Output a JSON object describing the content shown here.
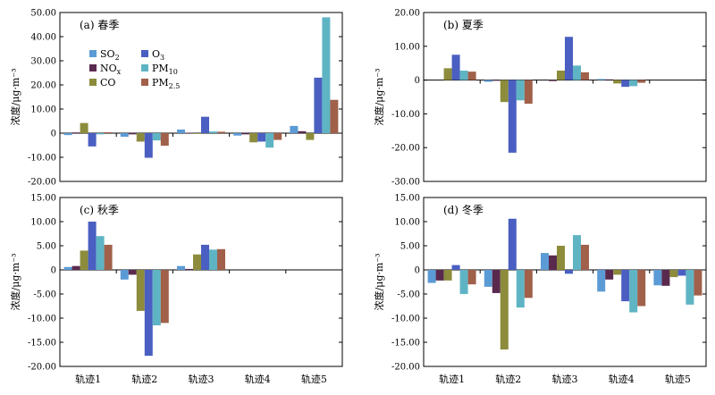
{
  "figure": {
    "ylabel": "浓度/μg·m⁻³",
    "categories": [
      "轨迹1",
      "轨迹2",
      "轨迹3",
      "轨迹4",
      "轨迹5"
    ]
  },
  "legend": {
    "entries": [
      {
        "key": "SO2",
        "base": "SO",
        "sub": "2"
      },
      {
        "key": "O3",
        "base": "O",
        "sub": "3"
      },
      {
        "key": "NOx",
        "base": "NO",
        "sub": "x"
      },
      {
        "key": "PM10",
        "base": "PM",
        "sub": "10"
      },
      {
        "key": "CO",
        "base": "CO",
        "sub": ""
      },
      {
        "key": "PM25",
        "base": "PM",
        "sub": "2.5"
      }
    ]
  },
  "colors": {
    "SO2": "#5b9bd5",
    "NOx": "#5a2a4e",
    "CO": "#8c8c3c",
    "O3": "#4a5fc1",
    "PM10": "#5fb4c4",
    "PM25": "#a0604a"
  },
  "series_order": [
    "SO2",
    "NOx",
    "CO",
    "O3",
    "PM10",
    "PM25"
  ],
  "chart_data": [
    {
      "type": "bar",
      "title": "(a) 春季",
      "ylabel": "浓度/μg·m⁻³",
      "ylim": [
        -20,
        50
      ],
      "ytick_labels": [
        "50.00",
        "40.00",
        "30.00",
        "20.00",
        "10.00",
        "0",
        "-10.00",
        "-20.00"
      ],
      "categories": [
        "轨迹1",
        "轨迹2",
        "轨迹3",
        "轨迹4",
        "轨迹5"
      ],
      "series": [
        {
          "name": "SO2",
          "values": [
            -0.8,
            -1.5,
            1.5,
            -1.0,
            3.0
          ]
        },
        {
          "name": "NOx",
          "values": [
            0.3,
            -0.5,
            0.2,
            -0.5,
            0.8
          ]
        },
        {
          "name": "CO",
          "values": [
            4.2,
            -3.5,
            -0.3,
            -3.8,
            -2.8
          ]
        },
        {
          "name": "O3",
          "values": [
            -5.5,
            -10.2,
            6.8,
            -3.5,
            23.0
          ]
        },
        {
          "name": "PM10",
          "values": [
            -0.5,
            -3.0,
            0.7,
            -6.0,
            48.0
          ]
        },
        {
          "name": "PM2.5",
          "values": [
            0.4,
            -5.2,
            0.6,
            -2.8,
            13.8
          ]
        }
      ]
    },
    {
      "type": "bar",
      "title": "(b) 夏季",
      "ylabel": "浓度/μg·m⁻³",
      "ylim": [
        -30,
        20
      ],
      "ytick_labels": [
        "20.00",
        "10.00",
        "0",
        "-10.00",
        "-20.00",
        "-30.00"
      ],
      "categories": [
        "轨迹1",
        "轨迹2",
        "轨迹3",
        "轨迹4",
        "轨迹5"
      ],
      "series": [
        {
          "name": "SO2",
          "values": [
            0,
            -0.5,
            0,
            0.3,
            0
          ]
        },
        {
          "name": "NOx",
          "values": [
            0,
            -0.2,
            -0.3,
            0.2,
            0
          ]
        },
        {
          "name": "CO",
          "values": [
            3.5,
            -6.5,
            2.8,
            -1.0,
            0
          ]
        },
        {
          "name": "O3",
          "values": [
            7.5,
            -21.5,
            12.8,
            -2.0,
            0
          ]
        },
        {
          "name": "PM10",
          "values": [
            2.8,
            -6.0,
            4.3,
            -1.8,
            0
          ]
        },
        {
          "name": "PM2.5",
          "values": [
            2.5,
            -7.0,
            2.3,
            -0.8,
            0
          ]
        }
      ]
    },
    {
      "type": "bar",
      "title": "(c) 秋季",
      "ylabel": "浓度/μg·m⁻³",
      "ylim": [
        -20,
        15
      ],
      "ytick_labels": [
        "15.00",
        "10.00",
        "5.00",
        "0",
        "-5.00",
        "-10.00",
        "-15.00",
        "-20.00"
      ],
      "categories": [
        "轨迹1",
        "轨迹2",
        "轨迹3",
        "轨迹4",
        "轨迹5"
      ],
      "series": [
        {
          "name": "SO2",
          "values": [
            0.6,
            -2.0,
            0.8,
            0,
            0
          ]
        },
        {
          "name": "NOx",
          "values": [
            0.8,
            -1.0,
            0.2,
            0,
            0
          ]
        },
        {
          "name": "CO",
          "values": [
            4.0,
            -8.5,
            3.2,
            0,
            0
          ]
        },
        {
          "name": "O3",
          "values": [
            10.0,
            -17.8,
            5.2,
            0,
            0
          ]
        },
        {
          "name": "PM10",
          "values": [
            7.0,
            -11.5,
            4.2,
            0,
            0
          ]
        },
        {
          "name": "PM2.5",
          "values": [
            5.2,
            -11.0,
            4.3,
            0,
            0
          ]
        }
      ]
    },
    {
      "type": "bar",
      "title": "(d) 冬季",
      "ylabel": "浓度/μg·m⁻³",
      "ylim": [
        -20,
        15
      ],
      "ytick_labels": [
        "15.00",
        "10.00",
        "5.00",
        "0",
        "-5.00",
        "-10.00",
        "-15.00",
        "-20.00"
      ],
      "categories": [
        "轨迹1",
        "轨迹2",
        "轨迹3",
        "轨迹4",
        "轨迹5"
      ],
      "series": [
        {
          "name": "SO2",
          "values": [
            -2.7,
            -3.5,
            3.5,
            -4.5,
            -3.2
          ]
        },
        {
          "name": "NOx",
          "values": [
            -2.2,
            -4.8,
            3.0,
            -2.0,
            -3.3
          ]
        },
        {
          "name": "CO",
          "values": [
            -2.2,
            -16.5,
            5.0,
            -1.0,
            -1.5
          ]
        },
        {
          "name": "O3",
          "values": [
            1.0,
            10.6,
            -0.8,
            -6.5,
            -1.2
          ]
        },
        {
          "name": "PM10",
          "values": [
            -5.0,
            -7.8,
            7.2,
            -8.8,
            -7.2
          ]
        },
        {
          "name": "PM2.5",
          "values": [
            -3.0,
            -5.8,
            5.2,
            -7.5,
            -5.3
          ]
        }
      ]
    }
  ]
}
